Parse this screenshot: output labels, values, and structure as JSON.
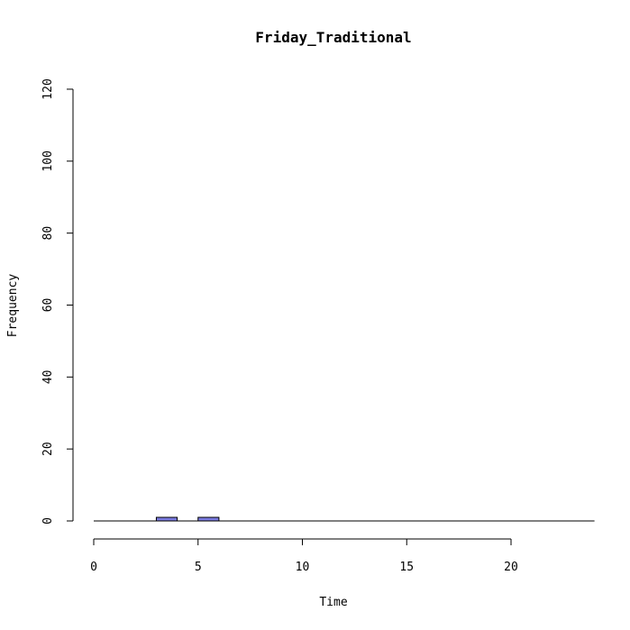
{
  "chart_data": {
    "type": "bar",
    "title": "Friday_Traditional",
    "xlabel": "Time",
    "ylabel": "Frequency",
    "xlim": [
      0,
      24
    ],
    "ylim": [
      0,
      120
    ],
    "x_ticks": [
      0,
      5,
      10,
      15,
      20
    ],
    "y_ticks": [
      0,
      20,
      40,
      60,
      80,
      100,
      120
    ],
    "bins": [
      {
        "start": 0,
        "end": 1,
        "count": 0
      },
      {
        "start": 1,
        "end": 2,
        "count": 0
      },
      {
        "start": 2,
        "end": 3,
        "count": 0
      },
      {
        "start": 3,
        "end": 4,
        "count": 1
      },
      {
        "start": 4,
        "end": 5,
        "count": 0
      },
      {
        "start": 5,
        "end": 6,
        "count": 1
      },
      {
        "start": 6,
        "end": 7,
        "count": 0
      },
      {
        "start": 7,
        "end": 8,
        "count": 0
      },
      {
        "start": 8,
        "end": 9,
        "count": 0
      },
      {
        "start": 9,
        "end": 10,
        "count": 0
      },
      {
        "start": 10,
        "end": 11,
        "count": 0
      },
      {
        "start": 11,
        "end": 12,
        "count": 0
      },
      {
        "start": 12,
        "end": 13,
        "count": 0
      },
      {
        "start": 13,
        "end": 14,
        "count": 0
      },
      {
        "start": 14,
        "end": 15,
        "count": 0
      },
      {
        "start": 15,
        "end": 16,
        "count": 0
      },
      {
        "start": 16,
        "end": 17,
        "count": 0
      },
      {
        "start": 17,
        "end": 18,
        "count": 0
      },
      {
        "start": 18,
        "end": 19,
        "count": 0
      },
      {
        "start": 19,
        "end": 20,
        "count": 0
      },
      {
        "start": 20,
        "end": 21,
        "count": 0
      },
      {
        "start": 21,
        "end": 22,
        "count": 0
      },
      {
        "start": 22,
        "end": 23,
        "count": 0
      },
      {
        "start": 23,
        "end": 24,
        "count": 0
      }
    ],
    "bar_color": "#7B7BE0",
    "grid": false,
    "legend": "none"
  }
}
